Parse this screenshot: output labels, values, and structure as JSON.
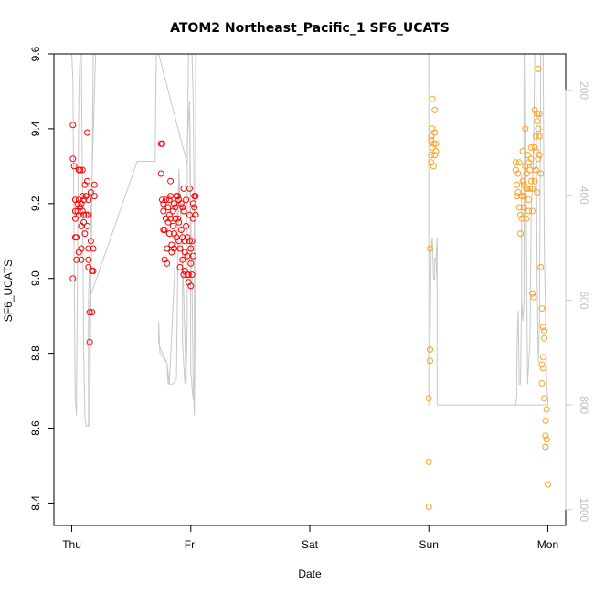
{
  "chart_data": {
    "type": "scatter",
    "title": "ATOM2 Northeast_Pacific_1 SF6_UCATS",
    "xlabel": "Date",
    "ylabel": "SF6_UCATS",
    "x_ticks": [
      "Thu",
      "Fri",
      "Sat",
      "Sun",
      "Mon"
    ],
    "xlim": [
      -0.15,
      4.15
    ],
    "ylim": [
      8.34,
      9.6
    ],
    "y_ticks": [
      8.4,
      8.6,
      8.8,
      9.0,
      9.2,
      9.4,
      9.6
    ],
    "y2_ticks": [
      200,
      400,
      600,
      800,
      1000
    ],
    "y2lim": [
      1030,
      130
    ],
    "y2_reversed": true,
    "grid": false,
    "legend": "none",
    "colors": {
      "points_thu_fri": "#ff0000",
      "points_sun_mon": "#ffa020",
      "altitude_line": "#c8c8c8"
    },
    "series": [
      {
        "color": "#ff0000",
        "points": [
          [
            0.01,
            9.41
          ],
          [
            0.01,
            9.32
          ],
          [
            0.02,
            9.3
          ],
          [
            0.01,
            9.0
          ],
          [
            0.03,
            9.21
          ],
          [
            0.03,
            9.18
          ],
          [
            0.03,
            9.16
          ],
          [
            0.03,
            9.11
          ],
          [
            0.04,
            9.11
          ],
          [
            0.04,
            9.05
          ],
          [
            0.05,
            9.2
          ],
          [
            0.05,
            9.18
          ],
          [
            0.06,
            9.21
          ],
          [
            0.06,
            9.17
          ],
          [
            0.06,
            9.07
          ],
          [
            0.06,
            9.29
          ],
          [
            0.07,
            9.29
          ],
          [
            0.07,
            9.19
          ],
          [
            0.08,
            9.2
          ],
          [
            0.08,
            9.14
          ],
          [
            0.08,
            9.08
          ],
          [
            0.08,
            9.05
          ],
          [
            0.09,
            9.29
          ],
          [
            0.09,
            9.22
          ],
          [
            0.09,
            9.18
          ],
          [
            0.1,
            9.21
          ],
          [
            0.1,
            9.17
          ],
          [
            0.1,
            9.15
          ],
          [
            0.11,
            9.25
          ],
          [
            0.11,
            9.12
          ],
          [
            0.12,
            9.22
          ],
          [
            0.12,
            9.17
          ],
          [
            0.13,
            9.39
          ],
          [
            0.13,
            9.26
          ],
          [
            0.13,
            9.14
          ],
          [
            0.14,
            9.21
          ],
          [
            0.14,
            9.17
          ],
          [
            0.14,
            9.05
          ],
          [
            0.14,
            9.03
          ],
          [
            0.14,
            9.08
          ],
          [
            0.15,
            8.91
          ],
          [
            0.15,
            8.83
          ],
          [
            0.16,
            9.23
          ],
          [
            0.16,
            9.1
          ],
          [
            0.17,
            8.91
          ],
          [
            0.17,
            9.02
          ],
          [
            0.18,
            9.02
          ],
          [
            0.18,
            9.08
          ],
          [
            0.19,
            9.25
          ],
          [
            0.19,
            9.22
          ],
          [
            0.75,
            9.36
          ],
          [
            0.75,
            9.28
          ],
          [
            0.76,
            9.36
          ],
          [
            0.76,
            9.21
          ],
          [
            0.77,
            9.2
          ],
          [
            0.77,
            9.18
          ],
          [
            0.77,
            9.13
          ],
          [
            0.78,
            9.13
          ],
          [
            0.78,
            9.05
          ],
          [
            0.79,
            9.21
          ],
          [
            0.79,
            9.16
          ],
          [
            0.8,
            9.08
          ],
          [
            0.8,
            9.04
          ],
          [
            0.81,
            9.19
          ],
          [
            0.81,
            9.15
          ],
          [
            0.82,
            9.21
          ],
          [
            0.82,
            9.17
          ],
          [
            0.82,
            9.12
          ],
          [
            0.83,
            9.26
          ],
          [
            0.83,
            9.22
          ],
          [
            0.83,
            9.16
          ],
          [
            0.84,
            9.09
          ],
          [
            0.84,
            9.07
          ],
          [
            0.85,
            9.18
          ],
          [
            0.85,
            9.14
          ],
          [
            0.86,
            9.2
          ],
          [
            0.86,
            9.12
          ],
          [
            0.86,
            9.08
          ],
          [
            0.87,
            9.19
          ],
          [
            0.87,
            9.16
          ],
          [
            0.88,
            9.22
          ],
          [
            0.88,
            9.11
          ],
          [
            0.89,
            9.22
          ],
          [
            0.89,
            9.16
          ],
          [
            0.9,
            9.21
          ],
          [
            0.9,
            9.15
          ],
          [
            0.9,
            9.1
          ],
          [
            0.91,
            9.08
          ],
          [
            0.91,
            9.03
          ],
          [
            0.92,
            9.2
          ],
          [
            0.92,
            9.13
          ],
          [
            0.93,
            9.19
          ],
          [
            0.93,
            9.11
          ],
          [
            0.93,
            9.05
          ],
          [
            0.94,
            9.24
          ],
          [
            0.94,
            9.18
          ],
          [
            0.94,
            9.01
          ],
          [
            0.95,
            9.1
          ],
          [
            0.95,
            9.07
          ],
          [
            0.95,
            9.02
          ],
          [
            0.96,
            9.21
          ],
          [
            0.96,
            9.14
          ],
          [
            0.97,
            9.11
          ],
          [
            0.97,
            9.06
          ],
          [
            0.97,
            9.01
          ],
          [
            0.98,
            9.01
          ],
          [
            0.98,
            8.99
          ],
          [
            0.99,
            9.24
          ],
          [
            0.99,
            9.17
          ],
          [
            0.99,
            9.1
          ],
          [
            1.0,
            9.08
          ],
          [
            1.0,
            9.04
          ],
          [
            1.0,
            8.98
          ],
          [
            1.01,
            9.1
          ],
          [
            1.01,
            9.01
          ],
          [
            1.02,
            9.2
          ],
          [
            1.02,
            9.16
          ],
          [
            1.02,
            9.06
          ],
          [
            1.03,
            9.22
          ],
          [
            1.03,
            9.19
          ],
          [
            1.04,
            9.22
          ],
          [
            1.04,
            9.17
          ]
        ]
      },
      {
        "color": "#ffa020",
        "points": [
          [
            3.0,
            8.39
          ],
          [
            3.0,
            8.51
          ],
          [
            3.0,
            8.68
          ],
          [
            3.01,
            8.78
          ],
          [
            3.01,
            8.81
          ],
          [
            3.01,
            9.08
          ],
          [
            3.02,
            9.31
          ],
          [
            3.02,
            9.33
          ],
          [
            3.02,
            9.37
          ],
          [
            3.02,
            9.38
          ],
          [
            3.03,
            9.4
          ],
          [
            3.03,
            9.48
          ],
          [
            3.03,
            9.35
          ],
          [
            3.04,
            9.3
          ],
          [
            3.04,
            9.36
          ],
          [
            3.05,
            9.45
          ],
          [
            3.05,
            9.33
          ],
          [
            3.05,
            9.39
          ],
          [
            3.06,
            9.34
          ],
          [
            3.06,
            9.36
          ],
          [
            3.73,
            9.31
          ],
          [
            3.73,
            9.29
          ],
          [
            3.74,
            9.25
          ],
          [
            3.74,
            9.22
          ],
          [
            3.75,
            9.28
          ],
          [
            3.75,
            9.23
          ],
          [
            3.76,
            9.31
          ],
          [
            3.76,
            9.19
          ],
          [
            3.77,
            9.17
          ],
          [
            3.77,
            9.12
          ],
          [
            3.78,
            9.22
          ],
          [
            3.78,
            9.16
          ],
          [
            3.79,
            9.34
          ],
          [
            3.79,
            9.26
          ],
          [
            3.8,
            9.25
          ],
          [
            3.8,
            9.22
          ],
          [
            3.8,
            9.19
          ],
          [
            3.81,
            9.4
          ],
          [
            3.81,
            9.3
          ],
          [
            3.82,
            9.28
          ],
          [
            3.82,
            9.24
          ],
          [
            3.82,
            9.16
          ],
          [
            3.83,
            9.33
          ],
          [
            3.83,
            9.24
          ],
          [
            3.84,
            9.31
          ],
          [
            3.84,
            9.21
          ],
          [
            3.84,
            9.18
          ],
          [
            3.85,
            9.29
          ],
          [
            3.85,
            9.24
          ],
          [
            3.86,
            9.35
          ],
          [
            3.86,
            9.32
          ],
          [
            3.86,
            9.26
          ],
          [
            3.87,
            9.24
          ],
          [
            3.87,
            9.18
          ],
          [
            3.87,
            8.96
          ],
          [
            3.88,
            9.3
          ],
          [
            3.88,
            8.95
          ],
          [
            3.89,
            9.45
          ],
          [
            3.89,
            9.35
          ],
          [
            3.89,
            9.26
          ],
          [
            3.9,
            9.38
          ],
          [
            3.9,
            9.34
          ],
          [
            3.9,
            9.29
          ],
          [
            3.91,
            9.44
          ],
          [
            3.91,
            9.42
          ],
          [
            3.91,
            9.23
          ],
          [
            3.92,
            9.4
          ],
          [
            3.92,
            9.32
          ],
          [
            3.92,
            9.56
          ],
          [
            3.93,
            9.44
          ],
          [
            3.93,
            9.38
          ],
          [
            3.93,
            9.33
          ],
          [
            3.94,
            9.28
          ],
          [
            3.94,
            9.03
          ],
          [
            3.95,
            8.92
          ],
          [
            3.95,
            8.77
          ],
          [
            3.95,
            8.72
          ],
          [
            3.96,
            8.76
          ],
          [
            3.96,
            8.79
          ],
          [
            3.96,
            8.87
          ],
          [
            3.97,
            8.84
          ],
          [
            3.97,
            8.86
          ],
          [
            3.97,
            8.68
          ],
          [
            3.98,
            8.62
          ],
          [
            3.98,
            8.58
          ],
          [
            3.98,
            8.55
          ],
          [
            3.99,
            8.65
          ],
          [
            3.99,
            8.57
          ],
          [
            4.0,
            8.45
          ]
        ]
      }
    ],
    "altitude_line": [
      [
        0.0,
        130
      ],
      [
        0.01,
        180
      ],
      [
        0.02,
        500
      ],
      [
        0.03,
        790
      ],
      [
        0.04,
        820
      ],
      [
        0.05,
        500
      ],
      [
        0.06,
        200
      ],
      [
        0.07,
        130
      ],
      [
        0.08,
        130
      ],
      [
        0.09,
        400
      ],
      [
        0.1,
        700
      ],
      [
        0.11,
        820
      ],
      [
        0.12,
        840
      ],
      [
        0.13,
        840
      ],
      [
        0.14,
        840
      ],
      [
        0.15,
        840
      ],
      [
        0.16,
        600
      ],
      [
        0.17,
        400
      ],
      [
        0.18,
        130
      ],
      [
        0.2,
        130
      ],
      [
        0.14,
        600
      ],
      [
        0.14,
        840
      ],
      [
        0.15,
        840
      ],
      [
        0.15,
        600
      ],
      [
        0.16,
        600
      ],
      [
        0.16,
        590
      ],
      [
        0.55,
        335
      ],
      [
        0.7,
        335
      ],
      [
        0.71,
        130
      ],
      [
        1.0,
        130
      ],
      [
        0.73,
        130
      ],
      [
        0.97,
        340
      ],
      [
        0.98,
        130
      ],
      [
        1.0,
        130
      ],
      [
        1.01,
        130
      ],
      [
        1.02,
        220
      ],
      [
        1.03,
        490
      ],
      [
        1.03,
        740
      ],
      [
        1.02,
        790
      ],
      [
        1.0,
        740
      ],
      [
        0.99,
        220
      ],
      [
        0.97,
        300
      ],
      [
        0.97,
        640
      ],
      [
        0.95,
        760
      ],
      [
        0.93,
        680
      ],
      [
        0.93,
        500
      ],
      [
        0.9,
        350
      ],
      [
        0.88,
        750
      ],
      [
        0.85,
        760
      ],
      [
        0.82,
        760
      ],
      [
        0.8,
        720
      ],
      [
        0.74,
        700
      ],
      [
        0.73,
        640
      ],
      [
        0.73,
        680
      ],
      [
        0.74,
        690
      ],
      [
        0.76,
        700
      ],
      [
        0.8,
        720
      ],
      [
        0.81,
        760
      ],
      [
        0.82,
        760
      ],
      [
        0.9,
        370
      ],
      [
        0.93,
        500
      ],
      [
        0.96,
        760
      ],
      [
        0.97,
        640
      ],
      [
        0.97,
        300
      ],
      [
        0.99,
        220
      ],
      [
        1.0,
        450
      ],
      [
        1.01,
        570
      ],
      [
        1.02,
        760
      ],
      [
        1.03,
        820
      ],
      [
        1.04,
        560
      ],
      [
        1.04,
        130
      ],
      [
        3.0,
        130
      ],
      [
        3.0,
        170
      ],
      [
        3.0,
        800
      ],
      [
        3.01,
        800
      ],
      [
        3.01,
        780
      ],
      [
        3.01,
        700
      ],
      [
        3.02,
        500
      ],
      [
        3.02,
        500
      ],
      [
        3.03,
        480
      ],
      [
        3.04,
        560
      ],
      [
        3.05,
        560
      ],
      [
        3.05,
        520
      ],
      [
        3.06,
        520
      ],
      [
        3.07,
        480
      ],
      [
        3.07,
        800
      ],
      [
        3.73,
        800
      ],
      [
        3.74,
        780
      ],
      [
        3.74,
        760
      ],
      [
        3.74,
        700
      ],
      [
        3.75,
        620
      ],
      [
        3.76,
        760
      ],
      [
        3.77,
        760
      ],
      [
        3.78,
        590
      ],
      [
        3.78,
        360
      ],
      [
        3.78,
        600
      ],
      [
        3.79,
        640
      ],
      [
        3.8,
        600
      ],
      [
        3.8,
        130
      ],
      [
        3.81,
        130
      ],
      [
        3.82,
        480
      ],
      [
        3.83,
        760
      ],
      [
        3.83,
        760
      ],
      [
        3.84,
        720
      ],
      [
        3.85,
        680
      ],
      [
        3.86,
        440
      ],
      [
        3.87,
        380
      ],
      [
        3.88,
        320
      ],
      [
        3.89,
        130
      ],
      [
        3.9,
        130
      ],
      [
        3.91,
        560
      ],
      [
        3.92,
        720
      ],
      [
        3.93,
        640
      ],
      [
        3.94,
        130
      ],
      [
        3.96,
        130
      ],
      [
        3.97,
        500
      ],
      [
        3.98,
        620
      ],
      [
        3.99,
        760
      ],
      [
        4.0,
        790
      ],
      [
        4.0,
        800
      ],
      [
        3.46,
        800
      ],
      [
        3.07,
        800
      ],
      [
        3.07,
        570
      ],
      [
        3.06,
        520
      ]
    ]
  }
}
